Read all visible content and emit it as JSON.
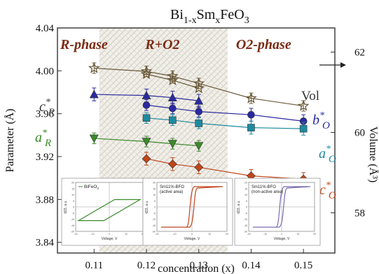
{
  "chart_data": {
    "type": "line",
    "title": "Bi1-xSmxFeO3",
    "title_parts": {
      "base": "Bi",
      "sub1": "1-x",
      "mid": "Sm",
      "sub2": "x",
      "tail": "FeO",
      "sub3": "3"
    },
    "xlabel": "concentration (x)",
    "ylabel": "Parameter (Å)",
    "y2label": "Volume (Å³)",
    "xlim": [
      0.103,
      0.156
    ],
    "ylim": [
      3.83,
      4.04
    ],
    "y2lim": [
      57.0,
      62.6
    ],
    "xticks": [
      "0.11",
      "0.12",
      "0.13",
      "0.14",
      "0.15"
    ],
    "yticks": [
      "3.84",
      "3.88",
      "3.92",
      "3.96",
      "4.00",
      "4.04"
    ],
    "y2ticks": [
      "58",
      "60",
      "62"
    ],
    "grid": false,
    "phase_regions": [
      {
        "label": "R-phase",
        "from": 0.103,
        "to": 0.111,
        "color": "#7a2a12"
      },
      {
        "label": "R+O2",
        "from": 0.111,
        "to": 0.1355,
        "color": "#7a2a12",
        "hatched": true
      },
      {
        "label": "O2-phase",
        "from": 0.1355,
        "to": 0.156,
        "color": "#7a2a12"
      }
    ],
    "series": [
      {
        "name": "c*R",
        "color": "#2a2aa0",
        "marker": "triangle-up",
        "axis": "left",
        "x": [
          0.11,
          0.12,
          0.125,
          0.13
        ],
        "y": [
          3.978,
          3.977,
          3.975,
          3.972
        ],
        "err": [
          0.006,
          0.006,
          0.006,
          0.006
        ]
      },
      {
        "name": "b*O",
        "color": "#2a2aa0",
        "marker": "circle",
        "axis": "left",
        "x": [
          0.12,
          0.125,
          0.13,
          0.14,
          0.15
        ],
        "y": [
          3.968,
          3.965,
          3.962,
          3.959,
          3.953
        ],
        "err": [
          0.005,
          0.005,
          0.005,
          0.006,
          0.006
        ]
      },
      {
        "name": "a*O",
        "color": "#1e8aa0",
        "marker": "square",
        "axis": "left",
        "x": [
          0.12,
          0.125,
          0.13,
          0.14,
          0.15
        ],
        "y": [
          3.956,
          3.954,
          3.951,
          3.947,
          3.946
        ],
        "err": [
          0.005,
          0.005,
          0.005,
          0.006,
          0.006
        ]
      },
      {
        "name": "a*R",
        "color": "#3a8a2a",
        "marker": "triangle-down",
        "axis": "left",
        "x": [
          0.11,
          0.12,
          0.125,
          0.13
        ],
        "y": [
          3.937,
          3.934,
          3.932,
          3.93
        ],
        "err": [
          0.005,
          0.005,
          0.005,
          0.005
        ]
      },
      {
        "name": "c*O",
        "color": "#c0451a",
        "marker": "diamond",
        "axis": "left",
        "x": [
          0.12,
          0.125,
          0.13,
          0.14,
          0.15
        ],
        "y": [
          3.918,
          3.913,
          3.91,
          3.902,
          3.899
        ],
        "err": [
          0.006,
          0.006,
          0.006,
          0.006,
          0.006
        ]
      },
      {
        "name": "Vol",
        "color": "#6b5a3a",
        "marker": "star",
        "axis": "right",
        "x": [
          0.11,
          0.12,
          0.125,
          0.13,
          0.14,
          0.15
        ],
        "y": [
          61.6,
          61.52,
          61.4,
          61.22,
          60.85,
          60.66
        ],
        "err": [
          0.13,
          0.13,
          0.13,
          0.13,
          0.13,
          0.13
        ],
        "y2": [
          61.45,
          61.3,
          61.1
        ]
      }
    ],
    "series_labels": [
      {
        "series": "c*R",
        "base": "c",
        "sup": "*",
        "sub": "R",
        "color": "#333333"
      },
      {
        "series": "a*R",
        "base": "a",
        "sup": "*",
        "sub": "R",
        "color": "#3a8a2a"
      },
      {
        "series": "b*O",
        "base": "b",
        "sup": "*",
        "sub": "O",
        "color": "#2a2aa0"
      },
      {
        "series": "a*O",
        "base": "a",
        "sup": "*",
        "sub": "O",
        "color": "#1e8aa0"
      },
      {
        "series": "c*O",
        "base": "c",
        "sup": "*",
        "sub": "O",
        "color": "#c0451a"
      },
      {
        "series": "Vol",
        "base": "Vol",
        "sup": "",
        "sub": "",
        "color": "#333333"
      }
    ],
    "insets": [
      {
        "legend": "BiFeO3",
        "legend_parts": [
          "BiFeO",
          "3"
        ],
        "sublegend": "",
        "color": "#3a8a2a",
        "xlabel": "Voltage, V",
        "ylabel": "d33, a.u.",
        "shape": "parallelogram",
        "yticks": [
          "20",
          "15",
          "10",
          "5",
          "0",
          "-5",
          "-10",
          "-15",
          "-20"
        ],
        "xticks": [
          "-20",
          "-10",
          "0",
          "10",
          "20"
        ]
      },
      {
        "legend": "Sm11%-BFO",
        "sublegend": "(active area)",
        "color": "#c0451a",
        "xlabel": "Voltage, V",
        "ylabel": "d33, a.u.",
        "shape": "loop",
        "yticks": [
          "20",
          "15",
          "10",
          "5",
          "0",
          "-5",
          "-10",
          "-15",
          "-20"
        ],
        "xticks": [
          "-20",
          "-10",
          "0",
          "10",
          "20"
        ]
      },
      {
        "legend": "Sm11%-BFO",
        "sublegend": "(non-active area)",
        "color": "#7a6ab0",
        "xlabel": "Voltage, V",
        "ylabel": "d33, a.u.",
        "shape": "loop",
        "yticks": [
          "20",
          "15",
          "10",
          "5",
          "0",
          "-5",
          "-10",
          "-15",
          "-20"
        ],
        "xticks": [
          "-20",
          "-10",
          "0",
          "10",
          "20"
        ]
      }
    ]
  }
}
